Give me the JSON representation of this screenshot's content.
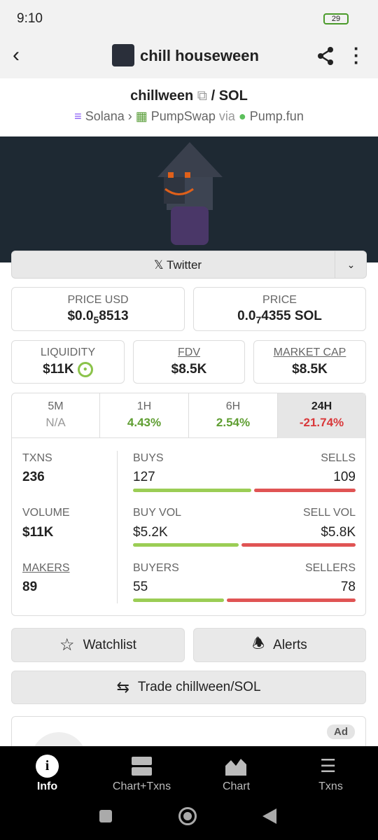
{
  "status_bar": {
    "time": "9:10",
    "battery": "29"
  },
  "header": {
    "title": "chill houseween"
  },
  "token": {
    "symbol": "chillween",
    "quote": "/ SOL",
    "chain": "Solana",
    "dex": "PumpSwap",
    "via": "via",
    "launchpad": "Pump.fun"
  },
  "social": {
    "link": "Twitter"
  },
  "prices": {
    "usd": {
      "label": "PRICE USD",
      "prefix": "$0.0",
      "zeros": "5",
      "digits": "8513"
    },
    "native": {
      "label": "PRICE",
      "prefix": "0.0",
      "zeros": "7",
      "digits": "4355 SOL"
    }
  },
  "stats": [
    {
      "label": "LIQUIDITY",
      "value": "$11K"
    },
    {
      "label": "FDV",
      "value": "$8.5K"
    },
    {
      "label": "MARKET CAP",
      "value": "$8.5K"
    }
  ],
  "timeframes": [
    {
      "label": "5M",
      "change": "N/A"
    },
    {
      "label": "1H",
      "change": "4.43%"
    },
    {
      "label": "6H",
      "change": "2.54%"
    },
    {
      "label": "24H",
      "change": "-21.74%"
    }
  ],
  "activity": {
    "txns": {
      "label": "TXNS",
      "value": 236
    },
    "buys": {
      "label": "BUYS",
      "value": 127
    },
    "sells": {
      "label": "SELLS",
      "value": 109
    },
    "volume": {
      "label": "VOLUME",
      "value": "$11K"
    },
    "buy_vol": {
      "label": "BUY VOL",
      "value": "$5.2K"
    },
    "sell_vol": {
      "label": "SELL VOL",
      "value": "$5.8K"
    },
    "makers": {
      "label": "MAKERS",
      "value": 89
    },
    "buyers": {
      "label": "BUYERS",
      "value": 55
    },
    "sellers": {
      "label": "SELLERS",
      "value": 78
    }
  },
  "actions": {
    "watchlist": "Watchlist",
    "alerts": "Alerts",
    "trade": "Trade chillween/SOL"
  },
  "ad": {
    "badge": "Ad"
  },
  "bottom_nav": [
    "Info",
    "Chart+Txns",
    "Chart",
    "Txns"
  ]
}
